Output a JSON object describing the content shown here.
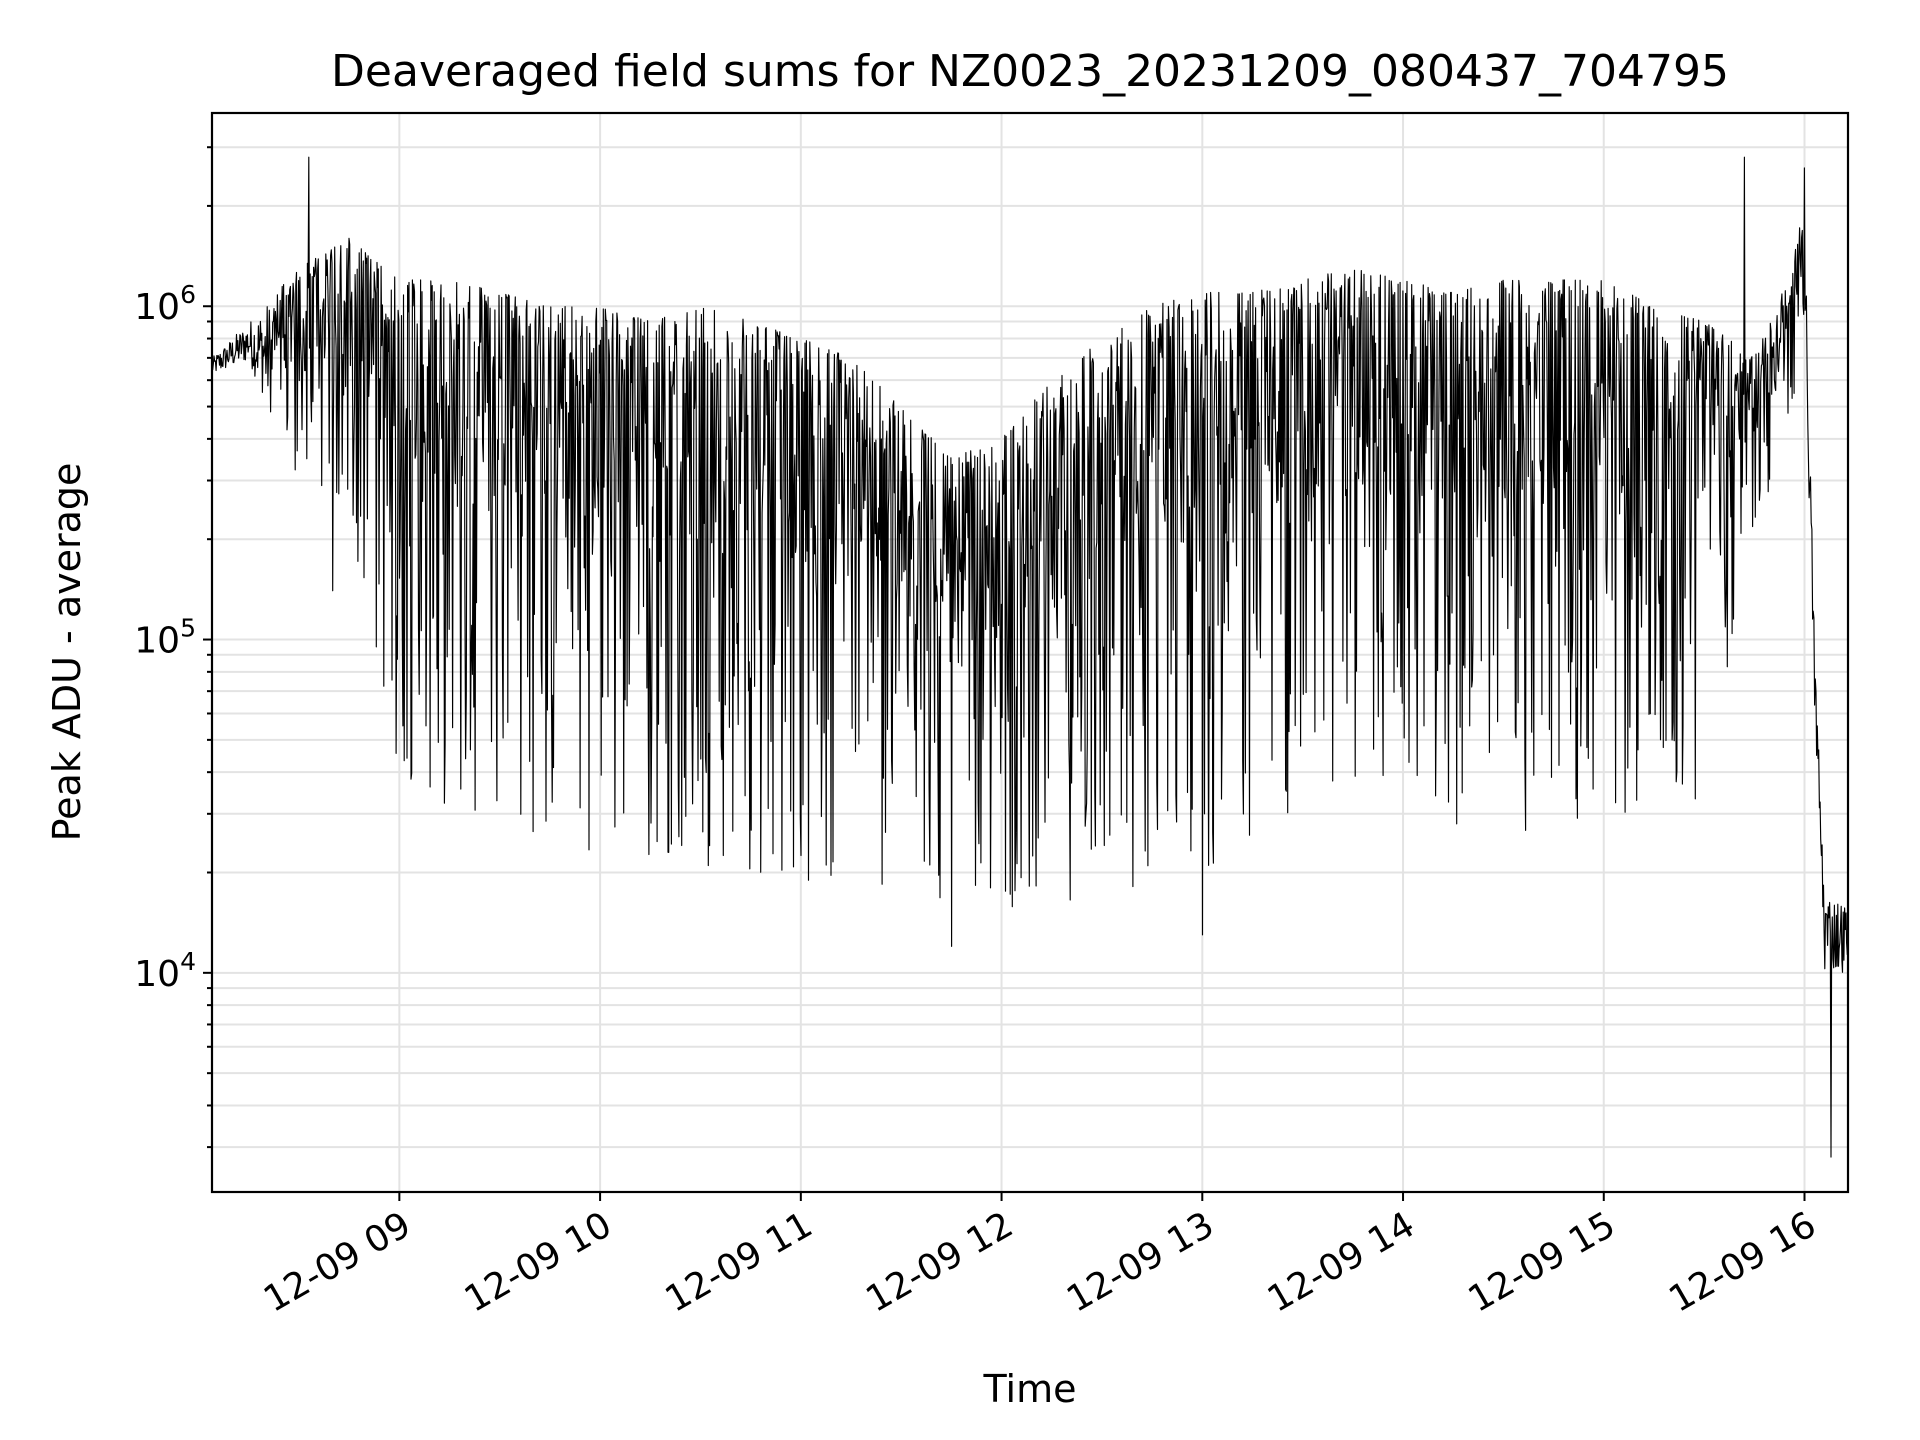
{
  "chart_data": {
    "type": "line",
    "title": "Deaveraged field sums for NZ0023_20231209_080437_704795",
    "xlabel": "Time",
    "ylabel": "Peak ADU - average",
    "y_scale": "log",
    "grid": "on",
    "legend": "none",
    "line_color": "#000000",
    "grid_color": "#e3e3e3",
    "xlim": [
      "2023-12-09 08:04",
      "2023-12-09 16:13"
    ],
    "ylim": [
      2200,
      3800000
    ],
    "x_ticks": [
      {
        "t": "2023-12-09 09:00",
        "label": "12-09 09"
      },
      {
        "t": "2023-12-09 10:00",
        "label": "12-09 10"
      },
      {
        "t": "2023-12-09 11:00",
        "label": "12-09 11"
      },
      {
        "t": "2023-12-09 12:00",
        "label": "12-09 12"
      },
      {
        "t": "2023-12-09 13:00",
        "label": "12-09 13"
      },
      {
        "t": "2023-12-09 14:00",
        "label": "12-09 14"
      },
      {
        "t": "2023-12-09 15:00",
        "label": "12-09 15"
      },
      {
        "t": "2023-12-09 16:00",
        "label": "12-09 16"
      }
    ],
    "y_ticks": [
      {
        "value": 10000,
        "base": "10",
        "exp": "4"
      },
      {
        "value": 100000,
        "base": "10",
        "exp": "5"
      },
      {
        "value": 1000000,
        "base": "10",
        "exp": "6"
      }
    ],
    "series": [
      {
        "envelope": [
          {
            "t": "2023-12-09 08:04",
            "high": 700000,
            "low": 620000
          },
          {
            "t": "2023-12-09 08:15",
            "high": 900000,
            "low": 680000
          },
          {
            "t": "2023-12-09 08:30",
            "high": 1300000,
            "low": 300000
          },
          {
            "t": "2023-12-09 08:45",
            "high": 1600000,
            "low": 200000
          },
          {
            "t": "2023-12-09 09:00",
            "high": 1200000,
            "low": 40000
          },
          {
            "t": "2023-12-09 09:15",
            "high": 1200000,
            "low": 30000
          },
          {
            "t": "2023-12-09 09:30",
            "high": 1100000,
            "low": 26000
          },
          {
            "t": "2023-12-09 09:45",
            "high": 1000000,
            "low": 24000
          },
          {
            "t": "2023-12-09 10:00",
            "high": 1000000,
            "low": 23000
          },
          {
            "t": "2023-12-09 10:15",
            "high": 900000,
            "low": 22000
          },
          {
            "t": "2023-12-09 10:30",
            "high": 1000000,
            "low": 21000
          },
          {
            "t": "2023-12-09 10:45",
            "high": 900000,
            "low": 20000
          },
          {
            "t": "2023-12-09 11:00",
            "high": 800000,
            "low": 19000
          },
          {
            "t": "2023-12-09 11:15",
            "high": 700000,
            "low": 18000
          },
          {
            "t": "2023-12-09 11:30",
            "high": 500000,
            "low": 17000
          },
          {
            "t": "2023-12-09 11:45",
            "high": 350000,
            "low": 15000
          },
          {
            "t": "2023-12-09 12:00",
            "high": 400000,
            "low": 15000
          },
          {
            "t": "2023-12-09 12:15",
            "high": 600000,
            "low": 16000
          },
          {
            "t": "2023-12-09 12:30",
            "high": 800000,
            "low": 17000
          },
          {
            "t": "2023-12-09 12:45",
            "high": 1000000,
            "low": 17000
          },
          {
            "t": "2023-12-09 13:00",
            "high": 1100000,
            "low": 20000
          },
          {
            "t": "2023-12-09 13:15",
            "high": 1100000,
            "low": 25000
          },
          {
            "t": "2023-12-09 13:30",
            "high": 1200000,
            "low": 30000
          },
          {
            "t": "2023-12-09 13:45",
            "high": 1300000,
            "low": 35000
          },
          {
            "t": "2023-12-09 14:00",
            "high": 1200000,
            "low": 35000
          },
          {
            "t": "2023-12-09 14:15",
            "high": 1100000,
            "low": 25000
          },
          {
            "t": "2023-12-09 14:30",
            "high": 1200000,
            "low": 28000
          },
          {
            "t": "2023-12-09 14:45",
            "high": 1200000,
            "low": 25000
          },
          {
            "t": "2023-12-09 15:00",
            "high": 1200000,
            "low": 28000
          },
          {
            "t": "2023-12-09 15:15",
            "high": 1000000,
            "low": 30000
          },
          {
            "t": "2023-12-09 15:30",
            "high": 900000,
            "low": 33000
          },
          {
            "t": "2023-12-09 15:45",
            "high": 700000,
            "low": 200000
          },
          {
            "t": "2023-12-09 15:55",
            "high": 1200000,
            "low": 400000
          },
          {
            "t": "2023-12-09 16:00",
            "high": 2000000,
            "low": 900000
          },
          {
            "t": "2023-12-09 16:03",
            "high": 100000,
            "low": 60000
          },
          {
            "t": "2023-12-09 16:06",
            "high": 18000,
            "low": 10000
          },
          {
            "t": "2023-12-09 16:13",
            "high": 16000,
            "low": 10000
          }
        ],
        "spikes": [
          {
            "t": "2023-12-09 08:33",
            "value": 2800000
          },
          {
            "t": "2023-12-09 08:40",
            "value": 140000
          },
          {
            "t": "2023-12-09 11:45",
            "value": 12000
          },
          {
            "t": "2023-12-09 13:00",
            "value": 13000
          },
          {
            "t": "2023-12-09 15:42",
            "value": 2800000
          },
          {
            "t": "2023-12-09 16:00",
            "value": 2600000
          },
          {
            "t": "2023-12-09 16:08",
            "value": 2800
          }
        ]
      }
    ]
  }
}
